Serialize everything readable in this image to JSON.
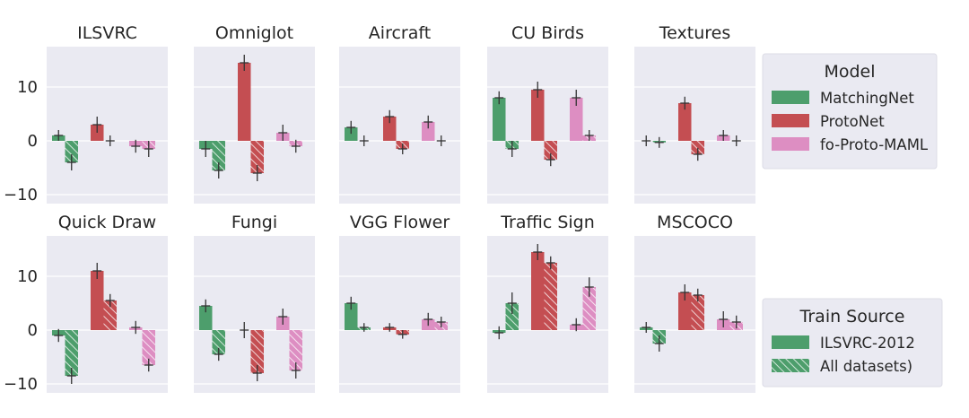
{
  "chart_data": {
    "type": "bar",
    "layout": "small-multiples",
    "panels": [
      {
        "title": "ILSVRC",
        "values": {
          "MatchingNet": [
            1,
            -4,
            0
          ],
          "ProtoNet": [
            3,
            0,
            0
          ],
          "fo-Proto-MAML": [
            -1,
            -1.5,
            0
          ]
        },
        "errors": {
          "MatchingNet": [
            1,
            1.5,
            0
          ],
          "ProtoNet": [
            1.5,
            1,
            0
          ],
          "fo-Proto-MAML": [
            1.2,
            1.5,
            0
          ]
        }
      },
      {
        "title": "Omniglot",
        "values": {
          "MatchingNet": [
            -1.5,
            -5.5,
            0
          ],
          "ProtoNet": [
            14.5,
            -6,
            0
          ],
          "fo-Proto-MAML": [
            1.5,
            -1,
            0
          ]
        },
        "errors": {
          "MatchingNet": [
            1.5,
            1.5,
            0
          ],
          "ProtoNet": [
            1.5,
            1.5,
            0
          ],
          "fo-Proto-MAML": [
            1.5,
            1.2,
            0
          ]
        }
      },
      {
        "title": "Aircraft",
        "values": {
          "MatchingNet": [
            2.5,
            0,
            0
          ],
          "ProtoNet": [
            4.5,
            -1.5,
            0
          ],
          "fo-Proto-MAML": [
            3.5,
            0,
            0
          ]
        },
        "errors": {
          "MatchingNet": [
            1.2,
            1,
            0
          ],
          "ProtoNet": [
            1.2,
            1,
            0
          ],
          "fo-Proto-MAML": [
            1.2,
            1,
            0
          ]
        }
      },
      {
        "title": "CU Birds",
        "values": {
          "MatchingNet": [
            8,
            -1.5,
            0
          ],
          "ProtoNet": [
            9.5,
            -3.5,
            0
          ],
          "fo-Proto-MAML": [
            8,
            1,
            0
          ]
        },
        "errors": {
          "MatchingNet": [
            1.2,
            1.5,
            0
          ],
          "ProtoNet": [
            1.5,
            1.2,
            0
          ],
          "fo-Proto-MAML": [
            1.5,
            1,
            0
          ]
        }
      },
      {
        "title": "Textures",
        "values": {
          "MatchingNet": [
            0,
            -0.3,
            0
          ],
          "ProtoNet": [
            7,
            -2.5,
            0
          ],
          "fo-Proto-MAML": [
            1,
            0,
            0
          ]
        },
        "errors": {
          "MatchingNet": [
            1,
            1,
            0
          ],
          "ProtoNet": [
            1.2,
            1.2,
            0
          ],
          "fo-Proto-MAML": [
            1,
            1,
            0
          ]
        }
      },
      {
        "title": "Quick Draw",
        "values": {
          "MatchingNet": [
            -1,
            -8.5,
            0
          ],
          "ProtoNet": [
            11,
            5.5,
            0
          ],
          "fo-Proto-MAML": [
            0.5,
            -6.5,
            0
          ]
        },
        "errors": {
          "MatchingNet": [
            1.2,
            1.5,
            0
          ],
          "ProtoNet": [
            1.5,
            1.2,
            0
          ],
          "fo-Proto-MAML": [
            1.2,
            1.2,
            0
          ]
        }
      },
      {
        "title": "Fungi",
        "values": {
          "MatchingNet": [
            4.5,
            -4.5,
            0
          ],
          "ProtoNet": [
            0,
            -8,
            0
          ],
          "fo-Proto-MAML": [
            2.5,
            -7.5,
            0
          ]
        },
        "errors": {
          "MatchingNet": [
            1.2,
            1.2,
            0
          ],
          "ProtoNet": [
            1.5,
            1.5,
            0
          ],
          "fo-Proto-MAML": [
            1.5,
            1.5,
            0
          ]
        }
      },
      {
        "title": "VGG Flower",
        "values": {
          "MatchingNet": [
            5,
            0.5,
            0
          ],
          "ProtoNet": [
            0.5,
            -0.8,
            0
          ],
          "fo-Proto-MAML": [
            2,
            1.5,
            0
          ]
        },
        "errors": {
          "MatchingNet": [
            1.2,
            0.8,
            0
          ],
          "ProtoNet": [
            0.8,
            0.8,
            0
          ],
          "fo-Proto-MAML": [
            1.2,
            1,
            0
          ]
        }
      },
      {
        "title": "Traffic Sign",
        "values": {
          "MatchingNet": [
            -0.5,
            5,
            0
          ],
          "ProtoNet": [
            14.5,
            12.5,
            0
          ],
          "fo-Proto-MAML": [
            1,
            8,
            0
          ]
        },
        "errors": {
          "MatchingNet": [
            1.2,
            2,
            0
          ],
          "ProtoNet": [
            1.5,
            1.2,
            0
          ],
          "fo-Proto-MAML": [
            1.2,
            1.8,
            0
          ]
        }
      },
      {
        "title": "MSCOCO",
        "values": {
          "MatchingNet": [
            0.5,
            -2.5,
            0
          ],
          "ProtoNet": [
            7,
            6.5,
            0
          ],
          "fo-Proto-MAML": [
            2,
            1.5,
            0
          ]
        },
        "errors": {
          "MatchingNet": [
            1,
            1.5,
            0
          ],
          "ProtoNet": [
            1.5,
            1.2,
            0
          ],
          "fo-Proto-MAML": [
            1.5,
            1.2,
            0
          ]
        }
      }
    ],
    "bar_order": [
      "ILSVRC-2012",
      "All datasets)",
      "spacer"
    ],
    "ylim": [
      -11,
      17
    ],
    "yticks": [
      10,
      0,
      -10
    ],
    "grid": true,
    "legends": [
      {
        "title": "Model",
        "placement": "top-right",
        "items": [
          {
            "label": "MatchingNet",
            "color": "#4d9e6c"
          },
          {
            "label": "ProtoNet",
            "color": "#c44e52"
          },
          {
            "label": "fo-Proto-MAML",
            "color": "#dd8ec2"
          }
        ]
      },
      {
        "title": "Train Source",
        "placement": "bottom-right",
        "items": [
          {
            "label": "ILSVRC-2012",
            "color": "#4d9e6c",
            "hatch": false
          },
          {
            "label": "All datasets)",
            "color": "#4d9e6c",
            "hatch": true
          }
        ]
      }
    ],
    "colors": {
      "MatchingNet": "#4d9e6c",
      "ProtoNet": "#c44e52",
      "fo-Proto-MAML": "#dd8ec2",
      "panel_bg": "#eaeaf2",
      "grid": "#ffffff",
      "errbar": "#333333"
    }
  }
}
